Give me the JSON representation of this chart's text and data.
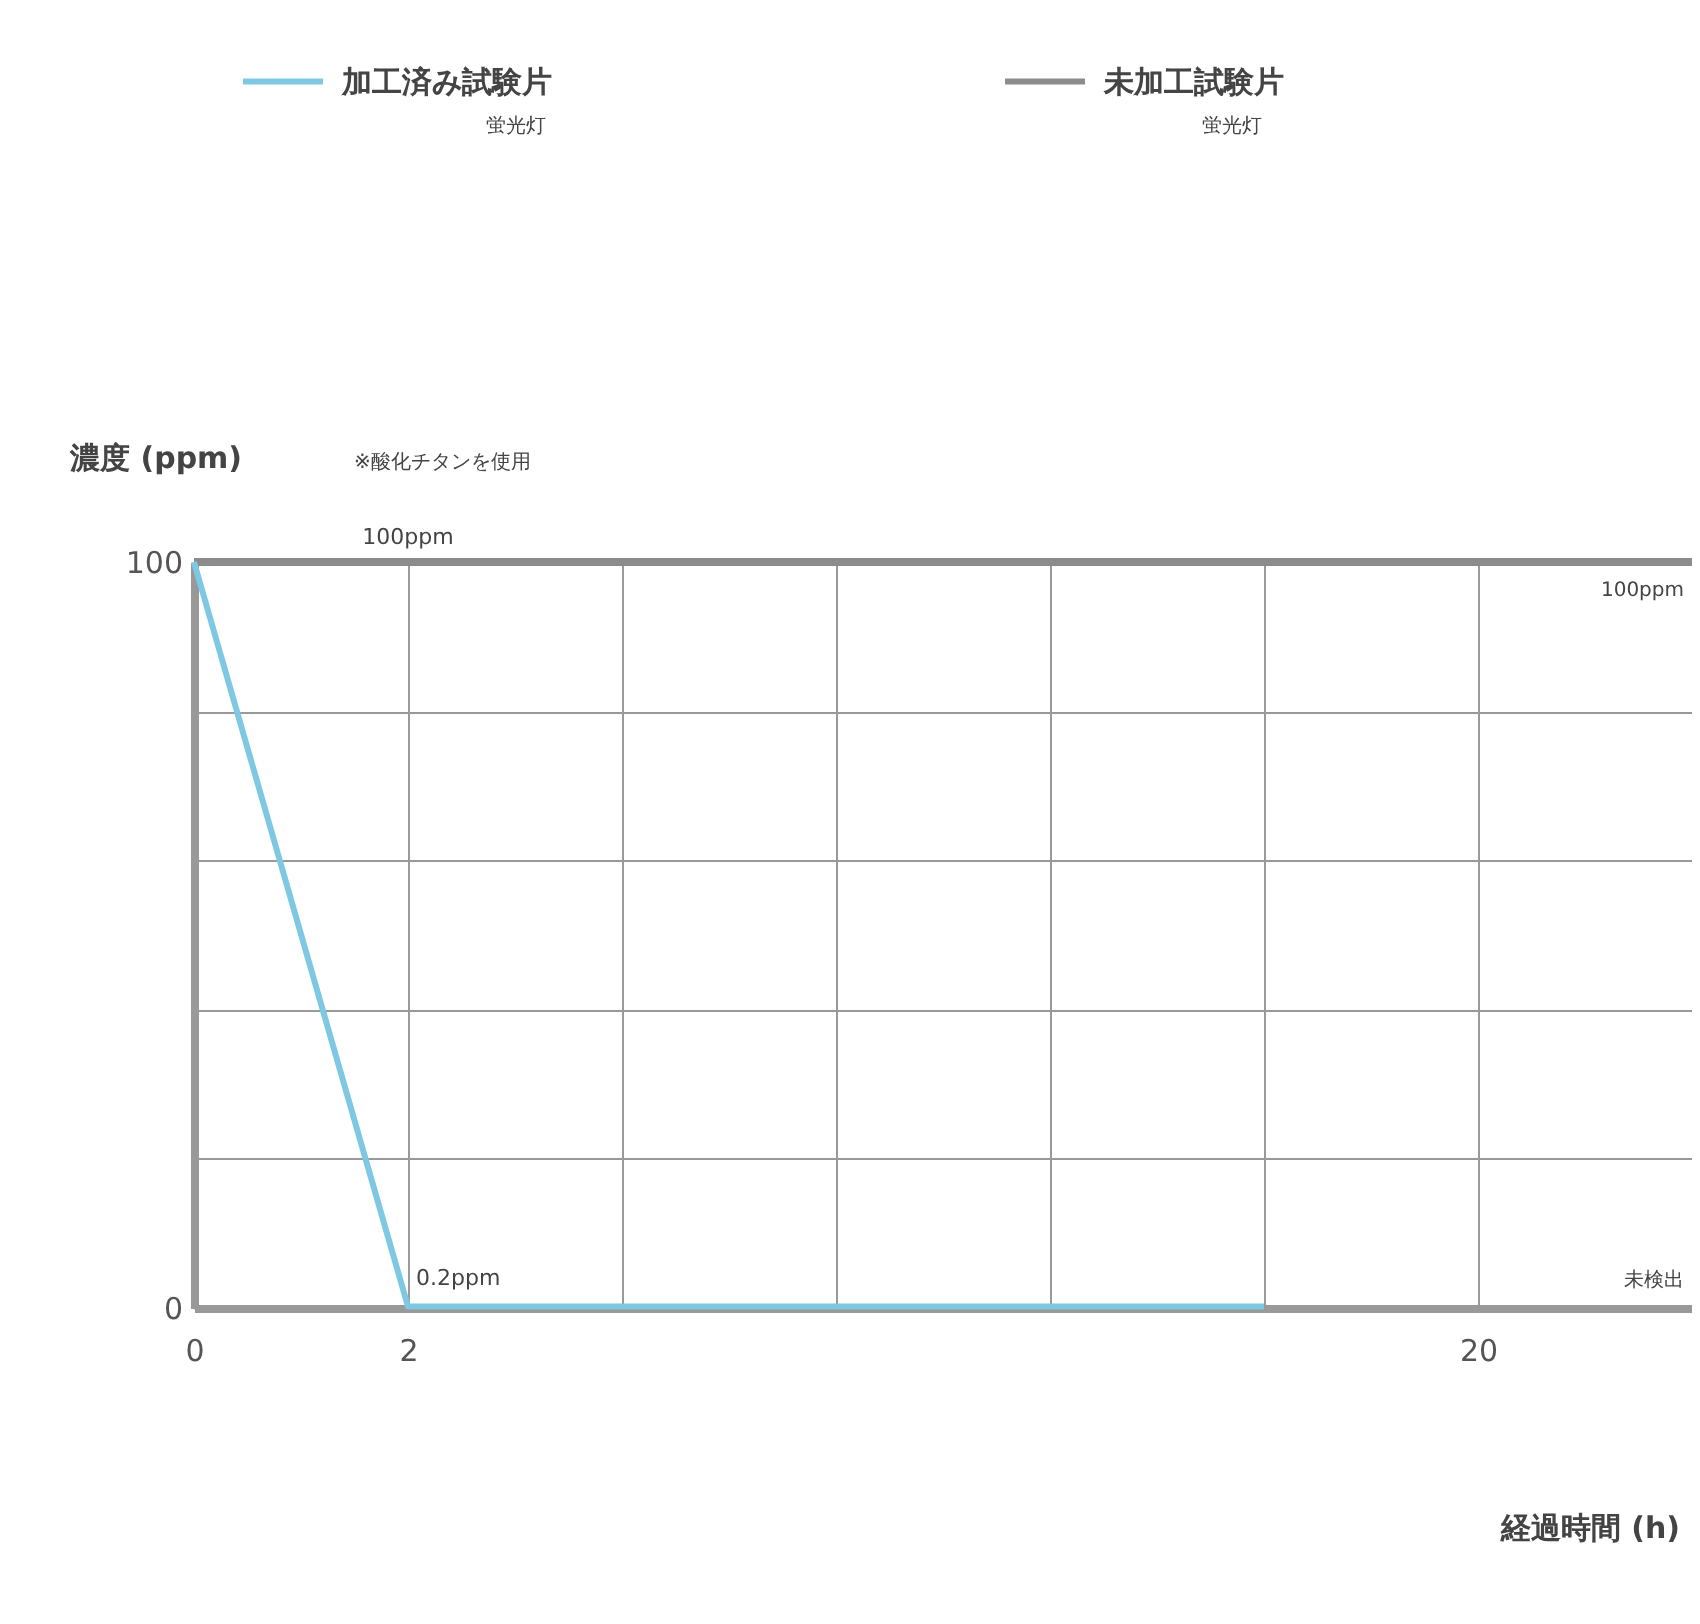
{
  "chart_data": {
    "type": "line",
    "ylabel": "濃度 (ppm)",
    "xlabel": "経過時間 (h)",
    "annotations": [
      "蛍光灯",
      "蛍光灯",
      "※酸化チタンを使用",
      "100ppm",
      "未検出",
      {
        "text": "100ppm",
        "x": "2",
        "y": 100
      },
      {
        "text": "0.2ppm",
        "x": "2",
        "y": 0.2
      }
    ],
    "categories": [
      "0",
      "2",
      null,
      null,
      null,
      null,
      "20",
      null
    ],
    "series": [
      {
        "name": "加工済み試験片",
        "color": "#7ec8e3",
        "values": [
          100,
          0.2,
          0.2,
          0.2,
          0.2,
          0.2,
          null,
          null
        ]
      },
      {
        "name": "未加工試験片",
        "color": "#8c8c8c",
        "values": [
          100,
          100,
          100,
          100,
          100,
          100,
          100,
          100
        ]
      }
    ],
    "ylim": [
      0,
      100
    ],
    "yticks": [
      0,
      {
        "value": 20,
        "label": null
      },
      {
        "value": 40,
        "label": null
      },
      {
        "value": 60,
        "label": null
      },
      {
        "value": 80,
        "label": null
      },
      100
    ],
    "grid": true,
    "legend": "top",
    "marker": "none",
    "line_style": "solid"
  }
}
